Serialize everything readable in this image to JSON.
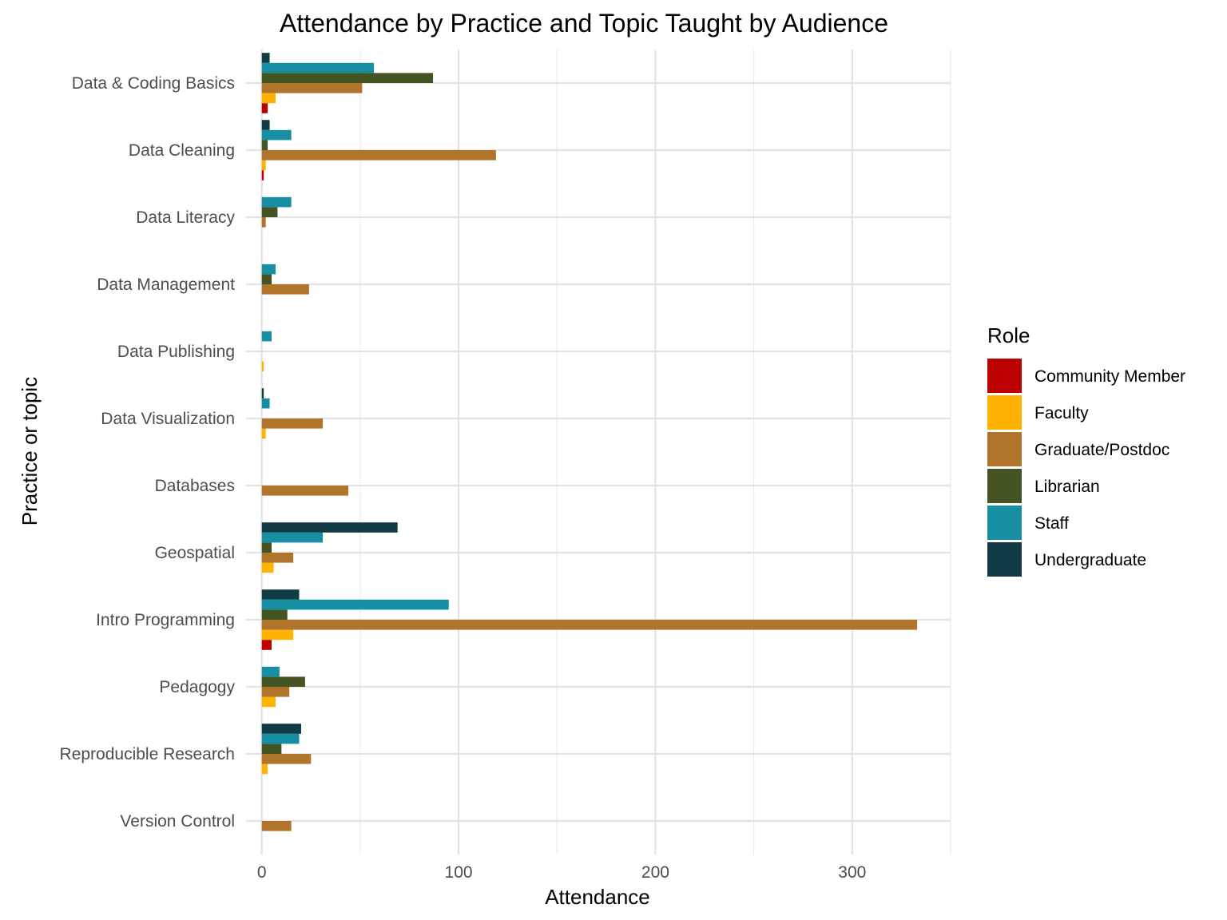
{
  "chart_data": {
    "type": "bar",
    "orientation": "horizontal",
    "title": "Attendance by Practice and Topic Taught by Audience",
    "xlabel": "Attendance",
    "ylabel": "Practice or topic",
    "xlim": [
      -8,
      350
    ],
    "xticks": [
      0,
      100,
      200,
      300
    ],
    "grid": true,
    "legend": {
      "title": "Role",
      "position": "right"
    },
    "categories": [
      "Version Control",
      "Reproducible Research",
      "Pedagogy",
      "Intro Programming",
      "Geospatial",
      "Databases",
      "Data Visualization",
      "Data Publishing",
      "Data Management",
      "Data Literacy",
      "Data Cleaning",
      "Data & Coding Basics"
    ],
    "series": [
      {
        "name": "Community Member",
        "color": "#BD0000",
        "values": [
          0,
          0,
          0,
          5,
          0,
          0,
          0,
          0,
          0,
          0,
          1,
          3
        ]
      },
      {
        "name": "Faculty",
        "color": "#FFB200",
        "values": [
          0,
          3,
          7,
          16,
          6,
          0,
          2,
          1,
          0,
          0,
          2,
          7
        ]
      },
      {
        "name": "Graduate/Postdoc",
        "color": "#B1742B",
        "values": [
          15,
          25,
          14,
          333,
          16,
          44,
          31,
          0,
          24,
          2,
          119,
          51
        ]
      },
      {
        "name": "Librarian",
        "color": "#445523",
        "values": [
          0,
          10,
          22,
          13,
          5,
          0,
          0,
          0,
          5,
          8,
          3,
          87
        ]
      },
      {
        "name": "Staff",
        "color": "#168FA2",
        "values": [
          0,
          19,
          9,
          95,
          31,
          0,
          4,
          5,
          7,
          15,
          15,
          57
        ]
      },
      {
        "name": "Undergraduate",
        "color": "#123C45",
        "values": [
          0,
          20,
          0,
          19,
          69,
          0,
          1,
          0,
          0,
          0,
          4,
          4
        ]
      }
    ]
  }
}
